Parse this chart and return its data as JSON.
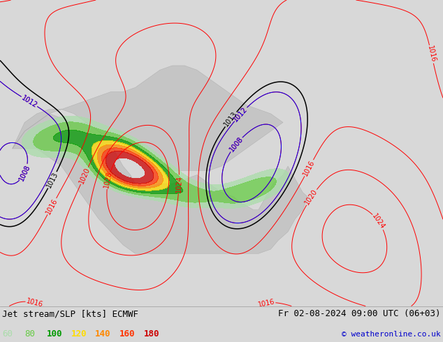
{
  "title_left": "Jet stream/SLP [kts] ECMWF",
  "title_right": "Fr 02-08-2024 09:00 UTC (06+03)",
  "copyright": "© weatheronline.co.uk",
  "legend_values": [
    60,
    80,
    100,
    120,
    140,
    160,
    180
  ],
  "legend_colors": [
    "#aaddaa",
    "#66cc44",
    "#009900",
    "#ffdd00",
    "#ff8800",
    "#ff3300",
    "#cc0000"
  ],
  "bg_color": "#d8d8d8",
  "map_bg": "#dcdcdc",
  "ocean_color": "#dcdcdc",
  "land_color": "#b8b8b8",
  "font_size_title": 9,
  "font_size_legend": 9,
  "font_size_copyright": 8,
  "slp_label_fontsize": 7,
  "map_xlim": [
    -175,
    5
  ],
  "map_ylim": [
    18,
    88
  ],
  "jet_alpha": 0.75
}
